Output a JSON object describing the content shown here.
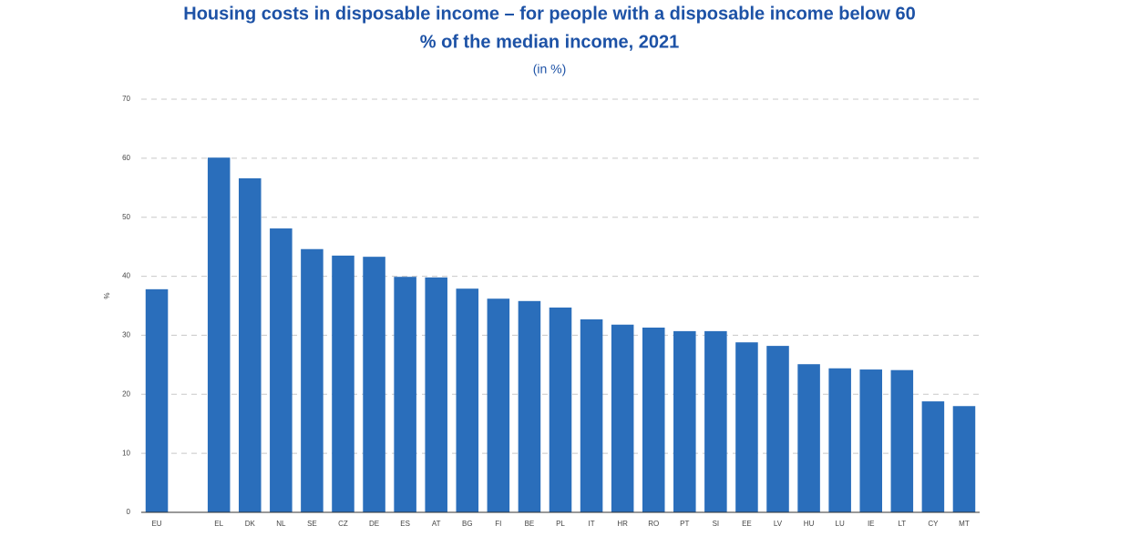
{
  "chart_data": {
    "type": "bar",
    "title": [
      "Housing costs in disposable income –  for people with a disposable income below 60",
      "% of the median income, 2021"
    ],
    "subtitle": "(in %)",
    "y_label": "%",
    "categories": [
      "EU",
      null,
      "EL",
      "DK",
      "NL",
      "SE",
      "CZ",
      "DE",
      "ES",
      "AT",
      "BG",
      "FI",
      "BE",
      "PL",
      "IT",
      "HR",
      "RO",
      "PT",
      "SI",
      "EE",
      "LV",
      "HU",
      "LU",
      "IE",
      "LT",
      "CY",
      "MT"
    ],
    "values": [
      37.8,
      null,
      60.1,
      56.6,
      48.1,
      44.6,
      43.5,
      43.3,
      39.9,
      39.8,
      37.9,
      36.2,
      35.8,
      34.7,
      32.7,
      31.8,
      31.3,
      30.7,
      30.7,
      28.8,
      28.2,
      25.1,
      24.4,
      24.2,
      24.1,
      18.8,
      18.0
    ],
    "color": "#2a6ebb",
    "ylim": [
      0,
      70
    ],
    "yticks": [
      0,
      10,
      20,
      30,
      40,
      50,
      60,
      70
    ],
    "grid": true
  }
}
